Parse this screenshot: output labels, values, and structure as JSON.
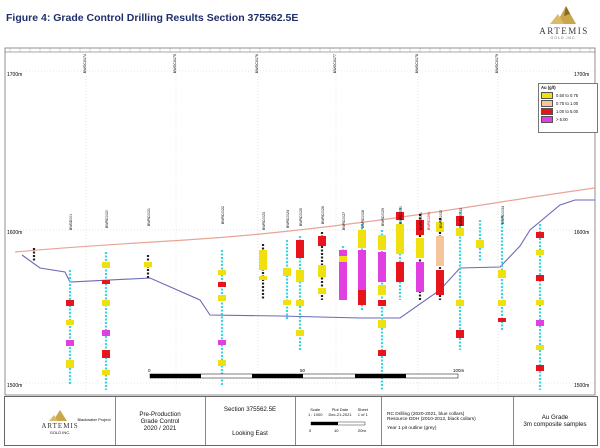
{
  "figure": {
    "title": "Figure 4: Grade Control Drilling Results Section 375562.5E"
  },
  "logo": {
    "brand": "ARTEMIS",
    "sub": "GOLD INC."
  },
  "colors": {
    "topo": "#e8a597",
    "pit": "#6a6ab8",
    "grade_low": "#f0e010",
    "grade_mid": "#f5c59e",
    "grade_high": "#e8141b",
    "grade_vhigh": "#e040e0",
    "rc_hole": "#3bd4dc",
    "ddh_hole": "#222222"
  },
  "elevations": {
    "top_left": "1700m",
    "top_right": "1700m",
    "mid_left": "1600m",
    "mid_right": "1600m",
    "bottom_left": "1500m",
    "bottom_right": "1500m"
  },
  "legend": {
    "title": "Au (g/t)",
    "items": [
      {
        "label": "0.50 to 0.75",
        "color": "#f0e010"
      },
      {
        "label": "0.75 to 1.00",
        "color": "#f5c59e"
      },
      {
        "label": "1.00 to 5.00",
        "color": "#e8141b"
      },
      {
        "label": "> 5.00",
        "color": "#e040e0"
      }
    ]
  },
  "hole_labels": {
    "top_row": [
      "BWGC0174",
      "BWGC0175",
      "BWGC0176",
      "BWGC0177",
      "BWGC0178",
      "BWGC0179"
    ],
    "collar_labels": [
      "BWDD001",
      "BWRC0020",
      "BWRC0021",
      "BWRC0022",
      "BWRC0023",
      "BWRC0024",
      "BWRC0025",
      "BWRC0026",
      "BWRC0027",
      "BWRC0028",
      "BWRC0029",
      "BWRC0030",
      "BWRC0031",
      "BWRC0032",
      "BWRC0033",
      "BWRC0034"
    ],
    "highlighted": "BWRC0294"
  },
  "scale_bar": {
    "left": "0",
    "mid": "50",
    "right": "100m"
  },
  "title_block": {
    "logo_brand": "ARTEMIS",
    "logo_sub": "GOLD INC.",
    "project": "Blackwater Project",
    "line1": "Pre-Production",
    "line2": "Grade Control",
    "line3": "2020 / 2021",
    "section": "Section 375562.5E",
    "looking": "Looking East",
    "scale_label": "Scale",
    "scale_value": "1 : 1000",
    "plot_date_label": "Plot Date",
    "plot_date": "Dec-21-2021",
    "sheet_label": "Sheet",
    "sheet_value": "1 of 1",
    "note1": "RC Drilling (2020-2021, blue collars)",
    "note2": "Resource DDH (2010-2012, black collars)",
    "note3": "Year 1 pit outline (grey)",
    "grade_title": "Au Grade",
    "grade_sub": "3m composite samples",
    "mini_scale": [
      "0",
      "10",
      "20m"
    ]
  }
}
